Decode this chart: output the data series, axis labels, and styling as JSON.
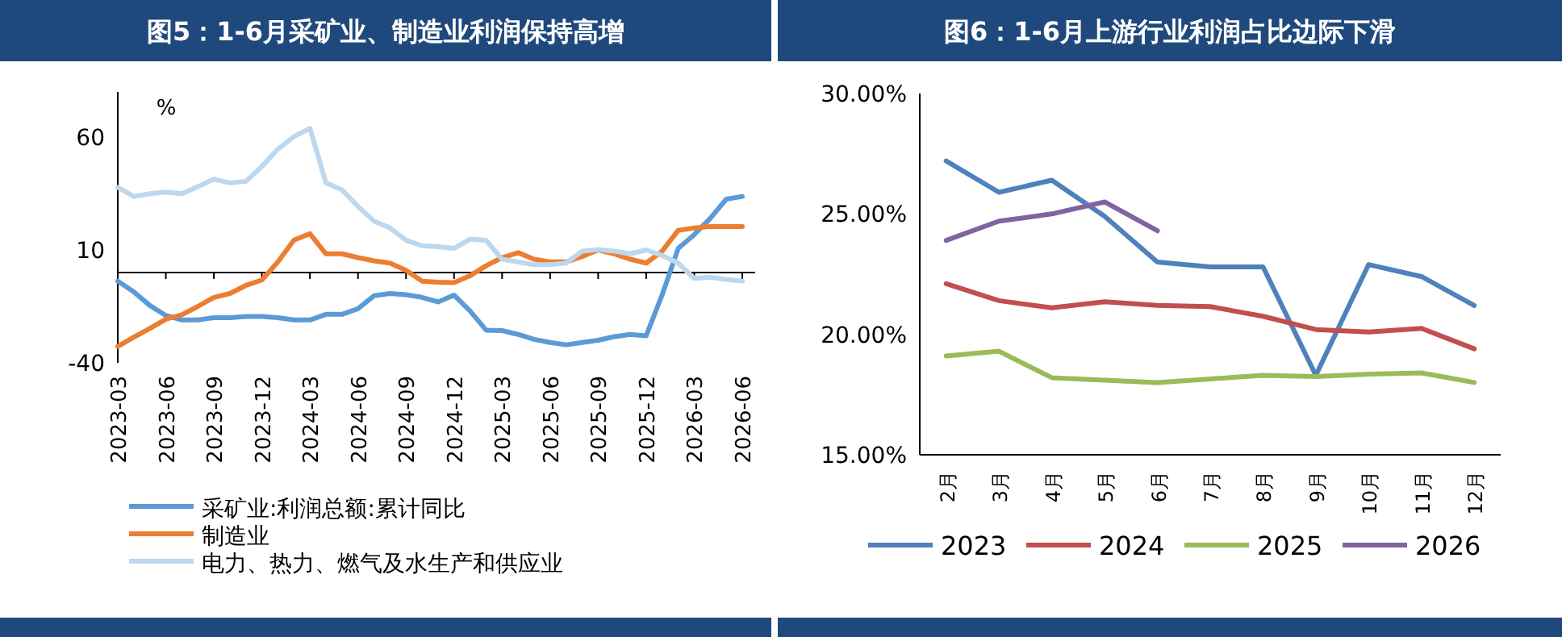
{
  "chart_data": [
    {
      "type": "line",
      "title": "图5：1-6月采矿业、制造业利润保持高增",
      "ylabel": "%",
      "legend": "bottom",
      "categories": [
        "2023-03",
        null,
        null,
        "2023-06",
        null,
        null,
        "2023-09",
        null,
        null,
        "2023-12",
        null,
        null,
        "2024-03",
        null,
        null,
        "2024-06",
        null,
        null,
        "2024-09",
        null,
        null,
        "2024-12",
        null,
        null,
        "2025-03",
        null,
        null,
        "2025-06",
        null,
        null,
        "2025-09",
        null,
        null,
        "2025-12",
        null,
        null,
        "2026-03",
        null,
        null,
        "2026-06"
      ],
      "ylim": [
        -40,
        80
      ],
      "yticks": [
        -40,
        10,
        60
      ],
      "series": [
        {
          "name": "采矿业:利润总额:累计同比",
          "color": "#5b9bd5",
          "values": [
            -3.8,
            -8.6,
            -14.6,
            -19,
            -21,
            -21,
            -20,
            -20,
            -19.5,
            -19.5,
            -20,
            -21,
            -21,
            -18.5,
            -18.5,
            -16,
            -10.3,
            -9.3,
            -9.8,
            -11,
            -13,
            -10,
            -17,
            -25.5,
            -25.7,
            -27.4,
            -29.6,
            -31,
            -32,
            -31,
            -30,
            -28.4,
            -27.4,
            -28,
            -9.8,
            10.7,
            16.8,
            24,
            32.5,
            33.7
          ]
        },
        {
          "name": "制造业",
          "color": "#ed7d31",
          "values": [
            -32.7,
            -28.6,
            -24.8,
            -20.7,
            -18.7,
            -15,
            -11,
            -9.3,
            -5.7,
            -3.3,
            4.7,
            14.4,
            17.2,
            8.3,
            8.3,
            6.6,
            5.2,
            4.2,
            1,
            -3.8,
            -4.3,
            -4.5,
            -1.4,
            3,
            6.6,
            8.8,
            5.9,
            4.7,
            4.7,
            7.1,
            10,
            8.3,
            5.9,
            4.2,
            9.5,
            18.7,
            19.7,
            20.4,
            20.4,
            20.4
          ]
        },
        {
          "name": "电力、热力、燃气及水生产和供应业",
          "color": "#bdd7ee",
          "values": [
            37.7,
            33.7,
            34.9,
            35.6,
            34.9,
            38,
            41.4,
            39.7,
            40.4,
            47,
            54.7,
            60.2,
            63.9,
            39.7,
            36.6,
            29.3,
            22.8,
            19.7,
            14.3,
            11.9,
            11.4,
            10.7,
            14.8,
            14.3,
            5.9,
            4.7,
            3.5,
            3.5,
            4.2,
            9.5,
            10.2,
            9.5,
            8.3,
            10,
            7.6,
            4.2,
            -2.6,
            -2.1,
            -3,
            -3.8
          ]
        }
      ]
    },
    {
      "type": "line",
      "title": "图6：1-6月上游行业利润占比边际下滑",
      "legend": "bottom",
      "categories": [
        "2月",
        "3月",
        "4月",
        "5月",
        "6月",
        "7月",
        "8月",
        "9月",
        "10月",
        "11月",
        "12月"
      ],
      "ylim": [
        15,
        30
      ],
      "yticks": [
        {
          "value": 15,
          "label": "15.00%"
        },
        {
          "value": 20,
          "label": "20.00%"
        },
        {
          "value": 25,
          "label": "25.00%"
        },
        {
          "value": 30,
          "label": "30.00%"
        }
      ],
      "series": [
        {
          "name": "2023",
          "color": "#4f81bd",
          "values": [
            27.2,
            25.9,
            26.4,
            24.9,
            23.0,
            22.8,
            22.8,
            18.3,
            22.9,
            22.4,
            21.2
          ]
        },
        {
          "name": "2024",
          "color": "#c0504d",
          "values": [
            22.1,
            21.4,
            21.1,
            21.35,
            21.2,
            21.15,
            20.75,
            20.2,
            20.1,
            20.25,
            19.4
          ]
        },
        {
          "name": "2025",
          "color": "#9bbb59",
          "values": [
            19.1,
            19.3,
            18.2,
            18.1,
            18.0,
            18.15,
            18.3,
            18.25,
            18.35,
            18.4,
            18.0
          ]
        },
        {
          "name": "2026",
          "color": "#8064a2",
          "values": [
            23.9,
            24.7,
            25.0,
            25.5,
            24.3,
            null,
            null,
            null,
            null,
            null,
            null
          ]
        }
      ]
    }
  ]
}
